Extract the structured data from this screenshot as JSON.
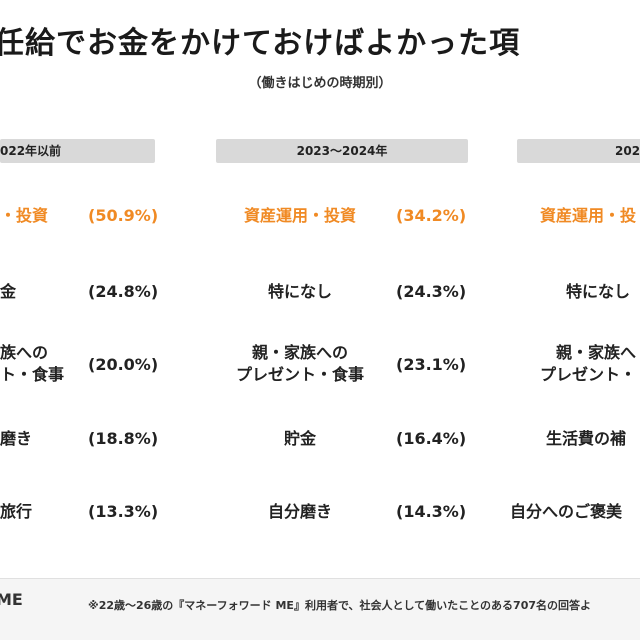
{
  "title": "任給でお金をかけておけばよかった項",
  "subtitle": "（働きはじめの時期別）",
  "columns": [
    {
      "header": "022年以前",
      "rows": [
        {
          "item": "・投資",
          "pct": "(50.9%)"
        },
        {
          "item": "金",
          "pct": "(24.8%)"
        },
        {
          "item": "族への",
          "item2": "ト・食事",
          "pct": "(20.0%)"
        },
        {
          "item": "磨き",
          "pct": "(18.8%)"
        },
        {
          "item": "旅行",
          "pct": "(13.3%)"
        }
      ]
    },
    {
      "header": "2023〜2024年",
      "rows": [
        {
          "item": "資産運用・投資",
          "pct": "(34.2%)"
        },
        {
          "item": "特になし",
          "pct": "(24.3%)"
        },
        {
          "item": "親・家族への",
          "item2": "プレゼント・食事",
          "pct": "(23.1%)"
        },
        {
          "item": "貯金",
          "pct": "(16.4%)"
        },
        {
          "item": "自分磨き",
          "pct": "(14.3%)"
        }
      ]
    },
    {
      "header": "202",
      "rows": [
        {
          "item": "資産運用・投"
        },
        {
          "item": "特になし"
        },
        {
          "item": "親・家族へ",
          "item2": "プレゼント・"
        },
        {
          "item": "生活費の補"
        },
        {
          "item": "自分へのご褒美"
        }
      ]
    }
  ],
  "footer": {
    "logo": "ME",
    "note": "※22歳〜26歳の『マネーフォワード ME』利用者で、社会人として働いたことのある707名の回答よ"
  },
  "colors": {
    "highlight": "#f08a24",
    "header_bg": "#d9d9d9"
  }
}
